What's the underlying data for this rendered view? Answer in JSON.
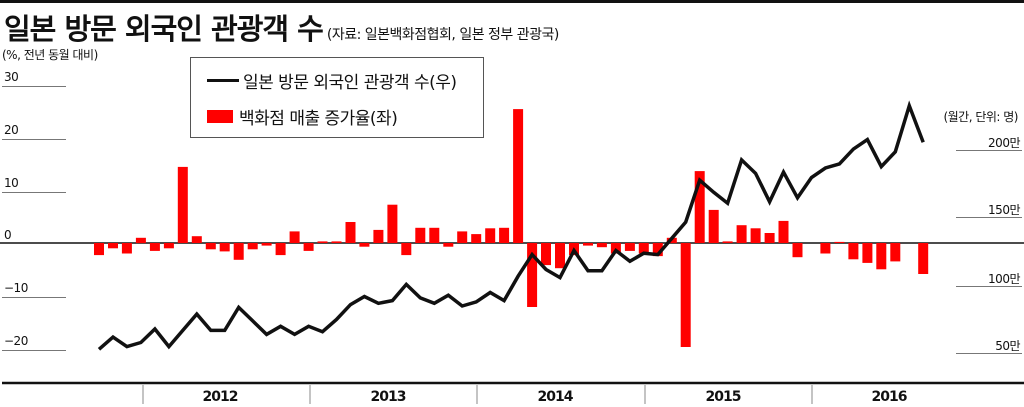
{
  "header": {
    "title": "일본 방문 외국인 관광객 수",
    "source": "(자료: 일본백화점협회, 일본 정부 관광국)"
  },
  "axes": {
    "left_unit": "(%, 전년 동월 대비)",
    "right_unit": "(월간, 단위: 명)",
    "left_ticks": [
      "30",
      "20",
      "10",
      "0",
      "−10",
      "−20"
    ],
    "right_ticks": [
      "200만",
      "150만",
      "100만",
      "50만"
    ],
    "years": [
      "2012",
      "2013",
      "2014",
      "2015",
      "2016"
    ]
  },
  "legend": {
    "line_label": "일본 방문 외국인 관광객 수(우)",
    "bar_label": "백화점 매출 증가율(좌)"
  },
  "colors": {
    "bar": "#ff0000",
    "line": "#111111",
    "axis": "#111111",
    "grid": "#777777"
  },
  "chart_data": {
    "type": "bar+line",
    "title": "일본 방문 외국인 관광객 수",
    "subtitle": "(자료: 일본백화점협회, 일본 정부 관광국)",
    "x_period_labels": [
      "2012",
      "2013",
      "2014",
      "2015",
      "2016"
    ],
    "series": [
      {
        "name": "백화점 매출 증가율(좌)",
        "type": "bar",
        "axis": "left",
        "unit": "%, 전년 동월 대비",
        "values": [
          -2.3,
          -1.0,
          -2.0,
          1.0,
          -1.5,
          -1.0,
          14.5,
          1.3,
          -1.2,
          -1.6,
          -3.2,
          -1.2,
          -0.5,
          -2.3,
          2.2,
          -1.5,
          0.3,
          0.3,
          4.0,
          -0.7,
          2.5,
          7.3,
          -2.3,
          2.9,
          2.9,
          -0.7,
          2.2,
          1.7,
          2.8,
          2.9,
          25.5,
          -12.2,
          -4.2,
          -4.8,
          -2.3,
          -0.5,
          -0.8,
          -2.0,
          -1.5,
          -2.0,
          -2.5,
          1.0,
          -19.8,
          13.7,
          6.3,
          0.3,
          3.4,
          2.8,
          1.9,
          4.2,
          -2.7,
          0.0,
          -2.0,
          0.2,
          -3.1,
          -3.8,
          -5.0,
          -3.5,
          0.0,
          -5.9
        ]
      },
      {
        "name": "일본 방문 외국인 관광객 수(우)",
        "type": "line",
        "axis": "right",
        "unit": "만 명 (월간)",
        "values": [
          52,
          61,
          54,
          57,
          67,
          54,
          66,
          78,
          66,
          66,
          83,
          73,
          63,
          69,
          63,
          69,
          65,
          74,
          85,
          91,
          86,
          88,
          100,
          90,
          86,
          92,
          84,
          87,
          94,
          88,
          106,
          122,
          111,
          105,
          125,
          110,
          110,
          125,
          117,
          123,
          122,
          134,
          146,
          177,
          168,
          160,
          192,
          182,
          161,
          183,
          164,
          179,
          186,
          189,
          200,
          207,
          187,
          198,
          232,
          205
        ]
      }
    ],
    "ylim_left": [
      -25,
      32
    ],
    "ylim_right": [
      35,
      245
    ],
    "left_ticks": [
      30,
      20,
      10,
      0,
      -10,
      -20
    ],
    "right_ticks": [
      200,
      150,
      100,
      50
    ],
    "ylabel_left": "(%, 전년 동월 대비)",
    "ylabel_right": "(월간, 단위: 명)",
    "legend_position": "top-left inside",
    "grid": false
  }
}
